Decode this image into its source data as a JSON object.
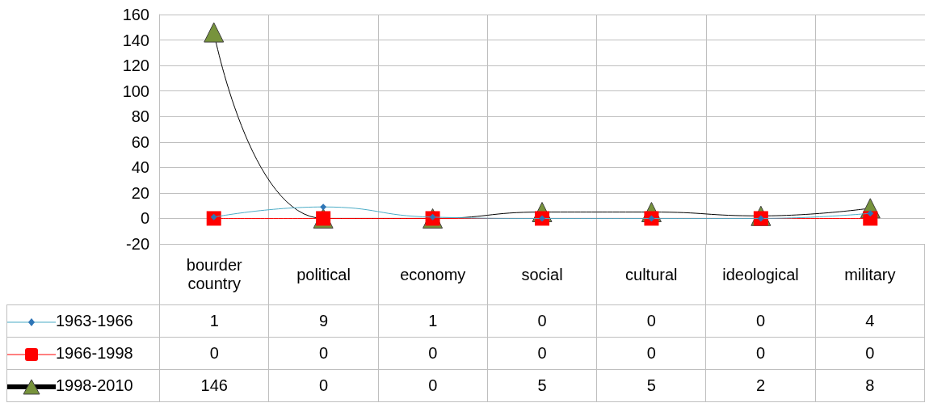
{
  "chart_data": {
    "type": "line",
    "categories": [
      "bourder country",
      "political",
      "economy",
      "social",
      "cultural",
      "ideological",
      "military"
    ],
    "series": [
      {
        "name": "1963-1966",
        "color": "#4bacc6",
        "colors": [
          "#2e75b6",
          "#2e75b6",
          "#2e75b6",
          "#2e75b6",
          "#2e75b6",
          "#2e75b6",
          "#2e75b6"
        ],
        "marker": "diamond",
        "values": [
          1,
          9,
          1,
          0,
          0,
          0,
          4
        ]
      },
      {
        "name": "1966-1998",
        "color": "#ff0000",
        "marker": "square",
        "values": [
          0,
          0,
          0,
          0,
          0,
          0,
          0
        ]
      },
      {
        "name": "1998-2010",
        "color": "#000000",
        "colors": [
          "#77933c",
          "#77933c",
          "#77933c",
          "#77933c",
          "#77933c",
          "#77933c",
          "#77933c"
        ],
        "marker": "triangle",
        "values": [
          146,
          0,
          0,
          5,
          5,
          2,
          8
        ]
      }
    ],
    "ylim": [
      -20,
      160
    ],
    "yticks": [
      -20,
      0,
      20,
      40,
      60,
      80,
      100,
      120,
      140,
      160
    ],
    "grid": true,
    "legend": "bottom left",
    "data_labels": true
  }
}
